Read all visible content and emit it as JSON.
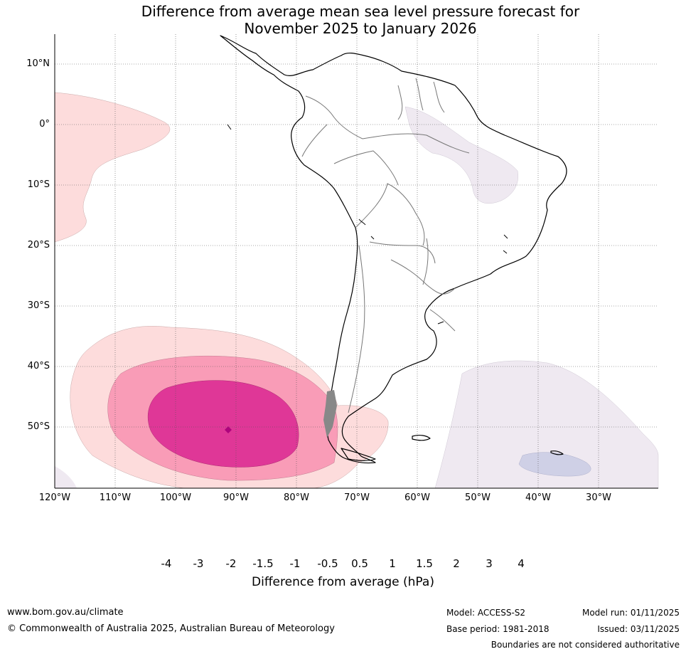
{
  "title": {
    "line1": "Difference from average mean sea level pressure forecast for",
    "line2": "November 2025 to January 2026"
  },
  "map": {
    "lat_labels": [
      "10°N",
      "0°",
      "10°S",
      "20°S",
      "30°S",
      "40°S",
      "50°S"
    ],
    "lon_labels": [
      "120°W",
      "110°W",
      "100°W",
      "90°W",
      "80°W",
      "70°W",
      "60°W",
      "50°W",
      "40°W",
      "30°W"
    ]
  },
  "colorbar": {
    "title": "Difference from average (hPa)",
    "ticks": [
      "-4",
      "-3",
      "-2",
      "-1.5",
      "-1",
      "-0.5",
      "0.5",
      "1",
      "1.5",
      "2",
      "3",
      "4"
    ],
    "colors": [
      "#0d6e5e",
      "#1f9198",
      "#68aad0",
      "#a5b9d8",
      "#cfd0e6",
      "#efe9f1",
      "#ffffff",
      "#fddcdc",
      "#f99cb7",
      "#df3797",
      "#ae047d",
      "#7c0276",
      "#4b0060"
    ]
  },
  "footer": {
    "website": "www.bom.gov.au/climate",
    "copyright": "© Commonwealth of Australia 2025, Australian Bureau of Meteorology",
    "model": "Model: ACCESS-S2",
    "base_period": "Base period: 1981-2018",
    "model_run": "Model run: 01/11/2025",
    "issued": "Issued: 03/11/2025",
    "disclaimer": "Boundaries are not considered authoritative"
  }
}
